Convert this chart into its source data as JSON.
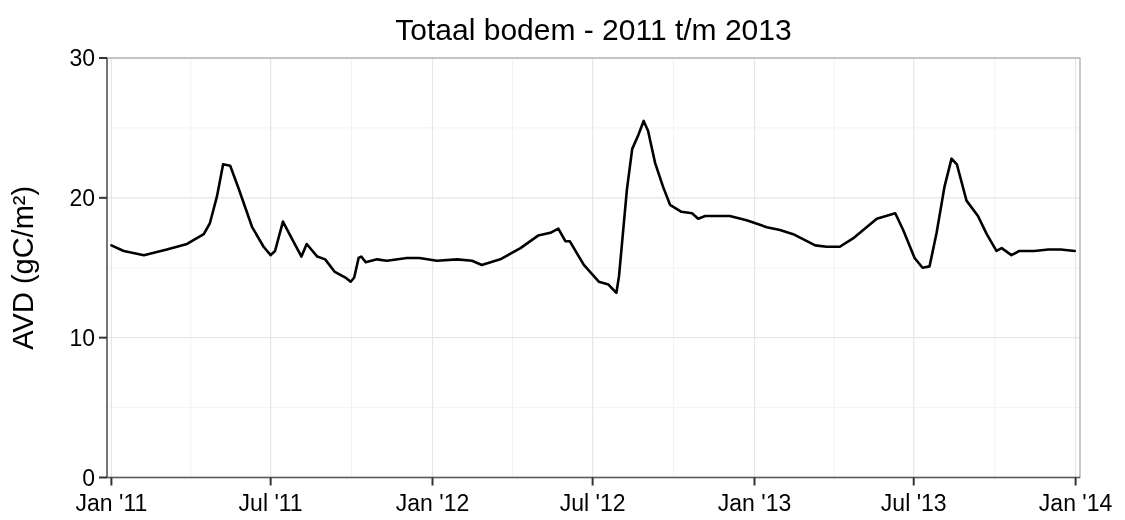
{
  "chart_data": {
    "type": "line",
    "title": "Totaal bodem - 2011 t/m 2013",
    "ylabel": "AVD (gC/m²)",
    "x": [
      "2011-01-01",
      "2011-01-15",
      "2011-02-07",
      "2011-03-05",
      "2011-03-28",
      "2011-04-16",
      "2011-04-23",
      "2011-05-01",
      "2011-05-08",
      "2011-05-16",
      "2011-05-26",
      "2011-06-10",
      "2011-06-23",
      "2011-07-01",
      "2011-07-06",
      "2011-07-15",
      "2011-07-25",
      "2011-08-05",
      "2011-08-11",
      "2011-08-23",
      "2011-09-01",
      "2011-09-12",
      "2011-09-24",
      "2011-09-30",
      "2011-10-04",
      "2011-10-09",
      "2011-10-12",
      "2011-10-17",
      "2011-10-30",
      "2011-11-10",
      "2011-12-03",
      "2011-12-17",
      "2012-01-06",
      "2012-01-29",
      "2012-02-15",
      "2012-02-26",
      "2012-03-18",
      "2012-04-10",
      "2012-04-30",
      "2012-05-14",
      "2012-05-23",
      "2012-05-31",
      "2012-06-05",
      "2012-06-21",
      "2012-07-08",
      "2012-07-19",
      "2012-07-28",
      "2012-07-31",
      "2012-08-09",
      "2012-08-15",
      "2012-08-22",
      "2012-08-28",
      "2012-09-02",
      "2012-09-10",
      "2012-09-19",
      "2012-09-27",
      "2012-10-10",
      "2012-10-22",
      "2012-10-29",
      "2012-11-06",
      "2012-11-22",
      "2012-12-04",
      "2012-12-23",
      "2013-01-15",
      "2013-01-30",
      "2013-02-14",
      "2013-03-11",
      "2013-03-24",
      "2013-04-08",
      "2013-04-23",
      "2013-05-20",
      "2013-06-10",
      "2013-06-19",
      "2013-07-02",
      "2013-07-11",
      "2013-07-19",
      "2013-07-27",
      "2013-08-05",
      "2013-08-13",
      "2013-08-19",
      "2013-08-30",
      "2013-09-12",
      "2013-09-22",
      "2013-10-03",
      "2013-10-09",
      "2013-10-20",
      "2013-10-29",
      "2013-11-15",
      "2013-12-01",
      "2013-12-15",
      "2013-12-31"
    ],
    "series": [
      {
        "color": "#000000",
        "values": [
          16.6,
          16.2,
          15.9,
          16.3,
          16.7,
          17.4,
          18.2,
          20.1,
          22.4,
          22.3,
          20.6,
          17.9,
          16.5,
          15.9,
          16.2,
          18.3,
          17.1,
          15.8,
          16.7,
          15.8,
          15.6,
          14.7,
          14.3,
          14.0,
          14.3,
          15.7,
          15.8,
          15.4,
          15.6,
          15.5,
          15.7,
          15.7,
          15.5,
          15.6,
          15.5,
          15.2,
          15.6,
          16.4,
          17.3,
          17.5,
          17.8,
          16.9,
          16.9,
          15.2,
          14.0,
          13.8,
          13.2,
          14.4,
          20.6,
          23.5,
          24.5,
          25.5,
          24.8,
          22.5,
          20.8,
          19.5,
          19.0,
          18.9,
          18.5,
          18.7,
          18.7,
          18.7,
          18.4,
          17.9,
          17.7,
          17.4,
          16.6,
          16.5,
          16.5,
          17.1,
          18.5,
          18.9,
          17.7,
          15.7,
          15.0,
          15.1,
          17.5,
          20.8,
          22.8,
          22.4,
          19.8,
          18.7,
          17.4,
          16.2,
          16.4,
          15.9,
          16.2,
          16.2,
          16.3,
          16.3,
          16.2
        ]
      }
    ],
    "xlim": [
      "2010-12-27",
      "2014-01-06"
    ],
    "xticks": [
      {
        "value": "2011-01-01",
        "label": "Jan '11"
      },
      {
        "value": "2011-07-01",
        "label": "Jul '11"
      },
      {
        "value": "2012-01-01",
        "label": "Jan '12"
      },
      {
        "value": "2012-07-01",
        "label": "Jul '12"
      },
      {
        "value": "2013-01-01",
        "label": "Jan '13"
      },
      {
        "value": "2013-07-01",
        "label": "Jul '13"
      },
      {
        "value": "2014-01-01",
        "label": "Jan '14"
      }
    ],
    "ylim": [
      0,
      30
    ],
    "yticks": [
      0,
      10,
      20,
      30
    ],
    "grid": true
  }
}
